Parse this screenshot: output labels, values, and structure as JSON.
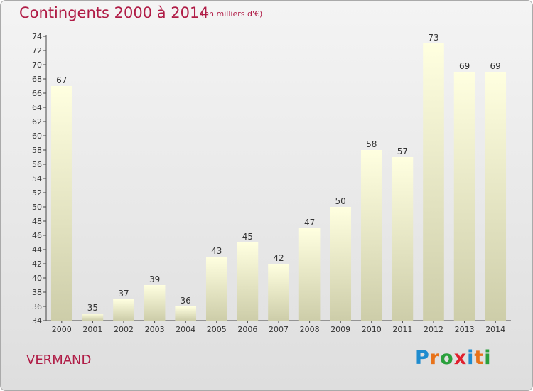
{
  "header": {
    "title": "Contingents 2000 à 2014",
    "subtitle": "(en milliers d'€)"
  },
  "footer": {
    "commune": "VERMAND",
    "logo_letters": [
      "P",
      "r",
      "o",
      "x",
      "i",
      "t",
      "i"
    ],
    "logo_colors": [
      "#1f8ccf",
      "#e8731a",
      "#2aa03c",
      "#e0202e",
      "#1f8ccf",
      "#e8731a",
      "#2aa03c"
    ]
  },
  "chart_data": {
    "type": "bar",
    "title": "Contingents 2000 à 2014",
    "subtitle": "(en milliers d'€)",
    "categories": [
      "2000",
      "2001",
      "2002",
      "2003",
      "2004",
      "2005",
      "2006",
      "2007",
      "2008",
      "2009",
      "2010",
      "2011",
      "2012",
      "2013",
      "2014"
    ],
    "values": [
      67,
      35,
      37,
      39,
      36,
      43,
      45,
      42,
      47,
      50,
      58,
      57,
      73,
      69,
      69
    ],
    "xlabel": "",
    "ylabel": "",
    "ylim": [
      34,
      74
    ],
    "ytick_step": 2,
    "grid": false,
    "data_labels": true,
    "colors": {
      "bar_top": "#ffffe0",
      "bar_bottom": "#cdcda9",
      "title": "#b01c46",
      "axis_text": "#333333",
      "data_label": "#333333"
    }
  }
}
